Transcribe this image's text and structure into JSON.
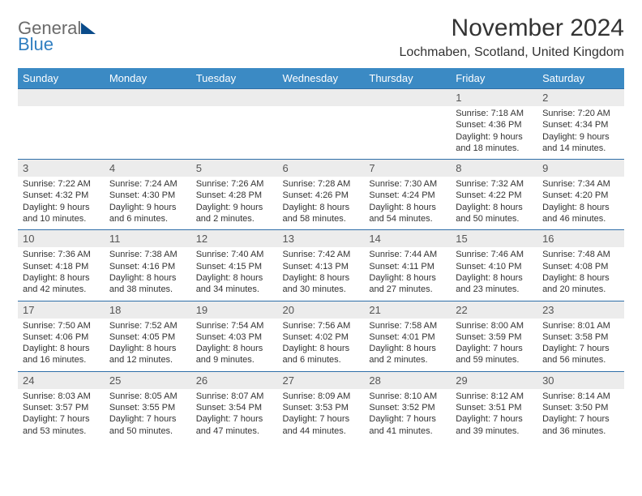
{
  "logo": {
    "word1": "General",
    "word2": "Blue"
  },
  "title": "November 2024",
  "location": "Lochmaben, Scotland, United Kingdom",
  "colors": {
    "header_bg": "#3b8ac4",
    "week_border": "#2f6ea8",
    "daynum_bg": "#ececec",
    "text": "#333333",
    "logo_gray": "#6b6b6b",
    "logo_blue": "#2f7ec0",
    "logo_mark": "#0a4b8a"
  },
  "day_headers": [
    "Sunday",
    "Monday",
    "Tuesday",
    "Wednesday",
    "Thursday",
    "Friday",
    "Saturday"
  ],
  "weeks": [
    [
      {
        "num": "",
        "lines": []
      },
      {
        "num": "",
        "lines": []
      },
      {
        "num": "",
        "lines": []
      },
      {
        "num": "",
        "lines": []
      },
      {
        "num": "",
        "lines": []
      },
      {
        "num": "1",
        "lines": [
          "Sunrise: 7:18 AM",
          "Sunset: 4:36 PM",
          "Daylight: 9 hours and 18 minutes."
        ]
      },
      {
        "num": "2",
        "lines": [
          "Sunrise: 7:20 AM",
          "Sunset: 4:34 PM",
          "Daylight: 9 hours and 14 minutes."
        ]
      }
    ],
    [
      {
        "num": "3",
        "lines": [
          "Sunrise: 7:22 AM",
          "Sunset: 4:32 PM",
          "Daylight: 9 hours and 10 minutes."
        ]
      },
      {
        "num": "4",
        "lines": [
          "Sunrise: 7:24 AM",
          "Sunset: 4:30 PM",
          "Daylight: 9 hours and 6 minutes."
        ]
      },
      {
        "num": "5",
        "lines": [
          "Sunrise: 7:26 AM",
          "Sunset: 4:28 PM",
          "Daylight: 9 hours and 2 minutes."
        ]
      },
      {
        "num": "6",
        "lines": [
          "Sunrise: 7:28 AM",
          "Sunset: 4:26 PM",
          "Daylight: 8 hours and 58 minutes."
        ]
      },
      {
        "num": "7",
        "lines": [
          "Sunrise: 7:30 AM",
          "Sunset: 4:24 PM",
          "Daylight: 8 hours and 54 minutes."
        ]
      },
      {
        "num": "8",
        "lines": [
          "Sunrise: 7:32 AM",
          "Sunset: 4:22 PM",
          "Daylight: 8 hours and 50 minutes."
        ]
      },
      {
        "num": "9",
        "lines": [
          "Sunrise: 7:34 AM",
          "Sunset: 4:20 PM",
          "Daylight: 8 hours and 46 minutes."
        ]
      }
    ],
    [
      {
        "num": "10",
        "lines": [
          "Sunrise: 7:36 AM",
          "Sunset: 4:18 PM",
          "Daylight: 8 hours and 42 minutes."
        ]
      },
      {
        "num": "11",
        "lines": [
          "Sunrise: 7:38 AM",
          "Sunset: 4:16 PM",
          "Daylight: 8 hours and 38 minutes."
        ]
      },
      {
        "num": "12",
        "lines": [
          "Sunrise: 7:40 AM",
          "Sunset: 4:15 PM",
          "Daylight: 8 hours and 34 minutes."
        ]
      },
      {
        "num": "13",
        "lines": [
          "Sunrise: 7:42 AM",
          "Sunset: 4:13 PM",
          "Daylight: 8 hours and 30 minutes."
        ]
      },
      {
        "num": "14",
        "lines": [
          "Sunrise: 7:44 AM",
          "Sunset: 4:11 PM",
          "Daylight: 8 hours and 27 minutes."
        ]
      },
      {
        "num": "15",
        "lines": [
          "Sunrise: 7:46 AM",
          "Sunset: 4:10 PM",
          "Daylight: 8 hours and 23 minutes."
        ]
      },
      {
        "num": "16",
        "lines": [
          "Sunrise: 7:48 AM",
          "Sunset: 4:08 PM",
          "Daylight: 8 hours and 20 minutes."
        ]
      }
    ],
    [
      {
        "num": "17",
        "lines": [
          "Sunrise: 7:50 AM",
          "Sunset: 4:06 PM",
          "Daylight: 8 hours and 16 minutes."
        ]
      },
      {
        "num": "18",
        "lines": [
          "Sunrise: 7:52 AM",
          "Sunset: 4:05 PM",
          "Daylight: 8 hours and 12 minutes."
        ]
      },
      {
        "num": "19",
        "lines": [
          "Sunrise: 7:54 AM",
          "Sunset: 4:03 PM",
          "Daylight: 8 hours and 9 minutes."
        ]
      },
      {
        "num": "20",
        "lines": [
          "Sunrise: 7:56 AM",
          "Sunset: 4:02 PM",
          "Daylight: 8 hours and 6 minutes."
        ]
      },
      {
        "num": "21",
        "lines": [
          "Sunrise: 7:58 AM",
          "Sunset: 4:01 PM",
          "Daylight: 8 hours and 2 minutes."
        ]
      },
      {
        "num": "22",
        "lines": [
          "Sunrise: 8:00 AM",
          "Sunset: 3:59 PM",
          "Daylight: 7 hours and 59 minutes."
        ]
      },
      {
        "num": "23",
        "lines": [
          "Sunrise: 8:01 AM",
          "Sunset: 3:58 PM",
          "Daylight: 7 hours and 56 minutes."
        ]
      }
    ],
    [
      {
        "num": "24",
        "lines": [
          "Sunrise: 8:03 AM",
          "Sunset: 3:57 PM",
          "Daylight: 7 hours and 53 minutes."
        ]
      },
      {
        "num": "25",
        "lines": [
          "Sunrise: 8:05 AM",
          "Sunset: 3:55 PM",
          "Daylight: 7 hours and 50 minutes."
        ]
      },
      {
        "num": "26",
        "lines": [
          "Sunrise: 8:07 AM",
          "Sunset: 3:54 PM",
          "Daylight: 7 hours and 47 minutes."
        ]
      },
      {
        "num": "27",
        "lines": [
          "Sunrise: 8:09 AM",
          "Sunset: 3:53 PM",
          "Daylight: 7 hours and 44 minutes."
        ]
      },
      {
        "num": "28",
        "lines": [
          "Sunrise: 8:10 AM",
          "Sunset: 3:52 PM",
          "Daylight: 7 hours and 41 minutes."
        ]
      },
      {
        "num": "29",
        "lines": [
          "Sunrise: 8:12 AM",
          "Sunset: 3:51 PM",
          "Daylight: 7 hours and 39 minutes."
        ]
      },
      {
        "num": "30",
        "lines": [
          "Sunrise: 8:14 AM",
          "Sunset: 3:50 PM",
          "Daylight: 7 hours and 36 minutes."
        ]
      }
    ]
  ]
}
